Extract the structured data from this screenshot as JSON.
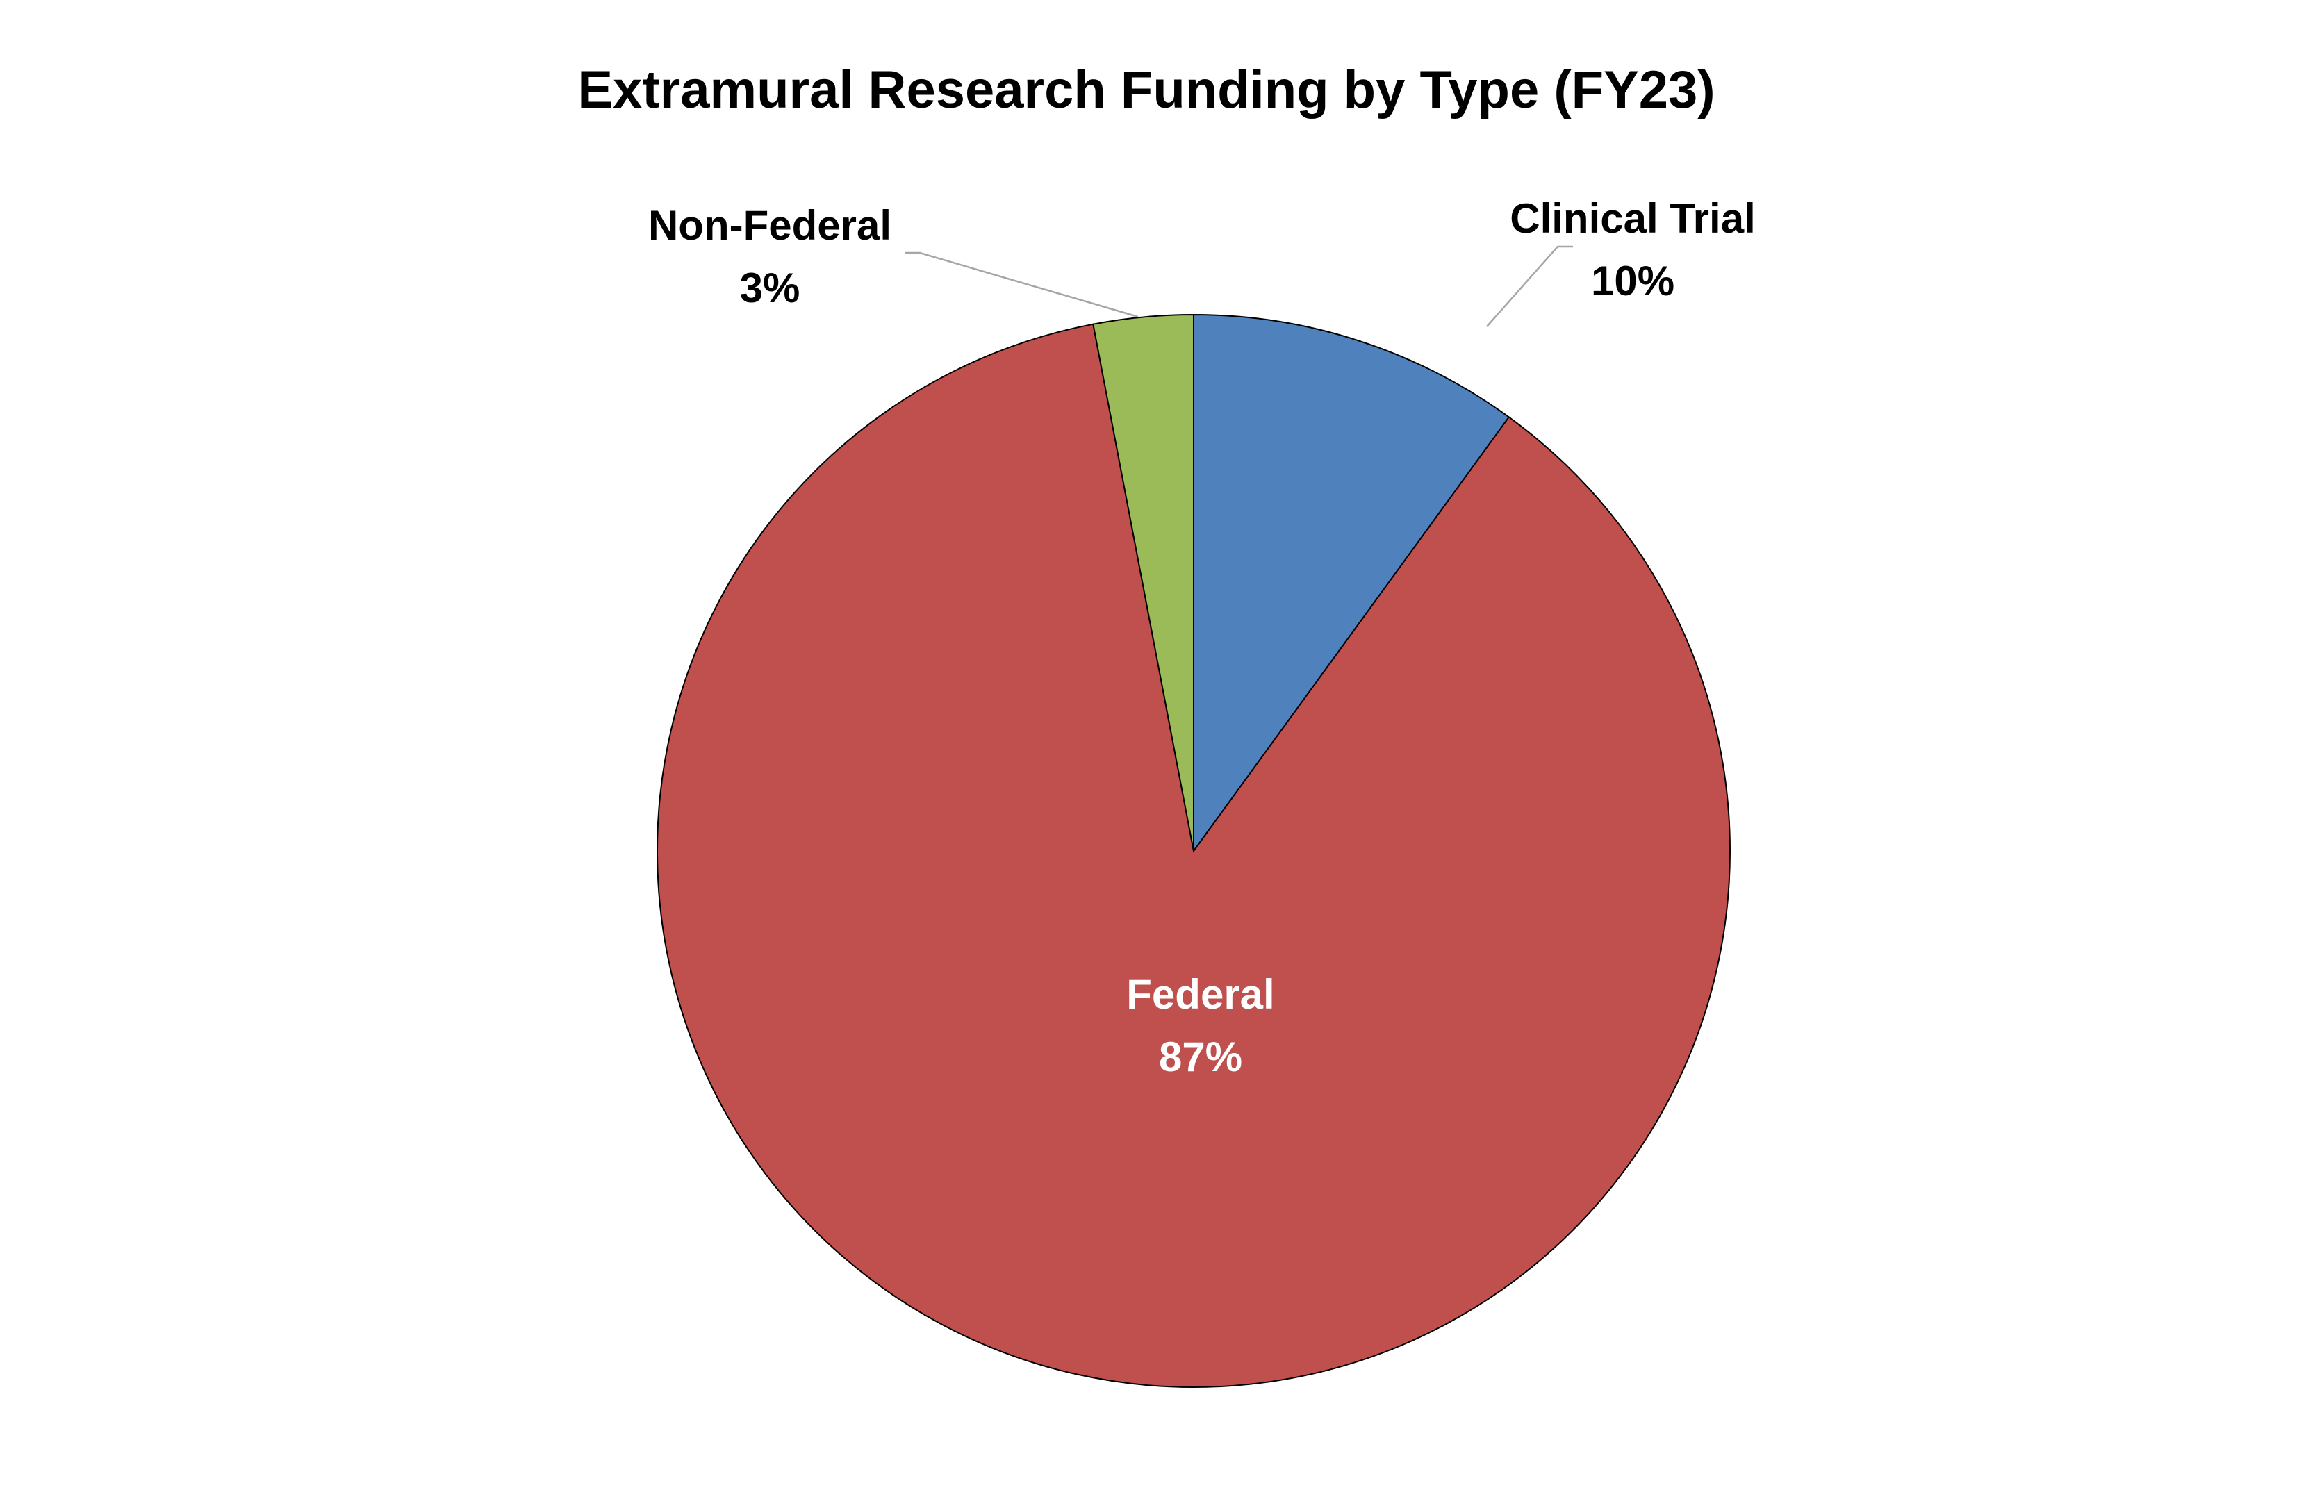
{
  "chart_data": {
    "type": "pie",
    "title": "Extramural Research Funding by Type (FY23)",
    "slices": [
      {
        "name": "Clinical Trial",
        "value": 10,
        "label": "10%",
        "color": "#4f81bd",
        "label_color": "#000000"
      },
      {
        "name": "Federal",
        "value": 87,
        "label": "87%",
        "color": "#c0504d",
        "label_color": "#ffffff"
      },
      {
        "name": "Non-Federal",
        "value": 3,
        "label": "3%",
        "color": "#9bbb59",
        "label_color": "#000000"
      }
    ],
    "start_angle": "12 o'clock",
    "direction": "clockwise",
    "legend": "none"
  }
}
